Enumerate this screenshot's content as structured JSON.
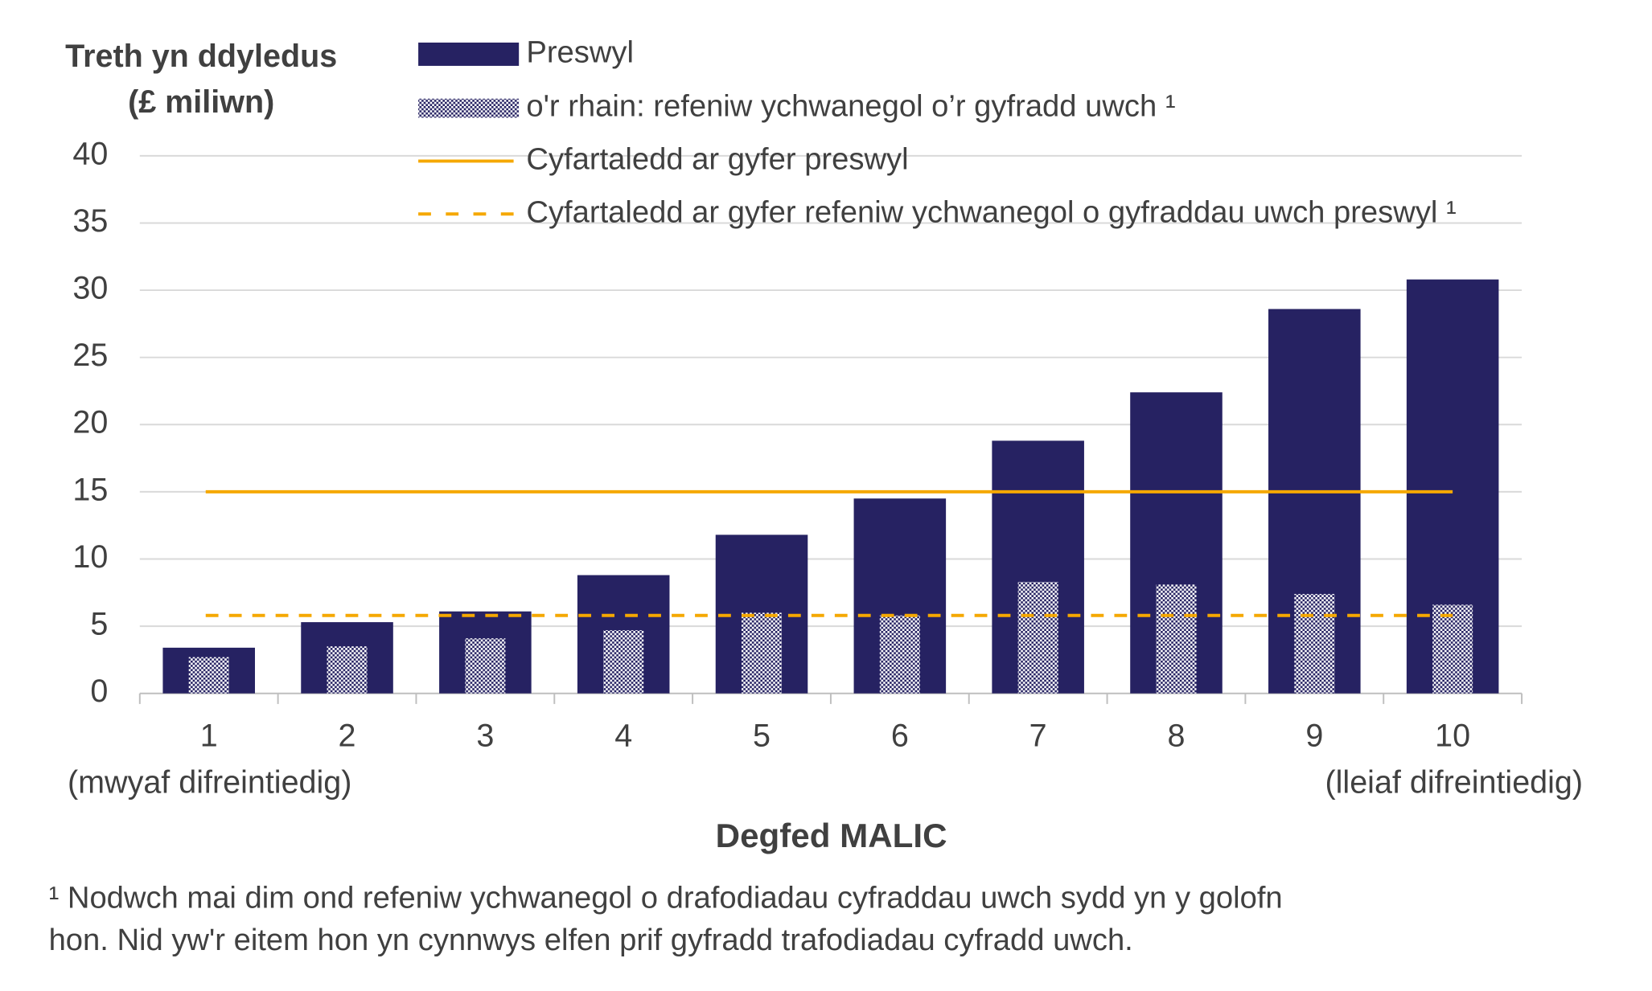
{
  "chart_data": {
    "type": "bar",
    "ylabel": [
      "Treth yn ddyledus",
      "(£ miliwn)"
    ],
    "xlabel": "Degfed MALIC",
    "categories": [
      "1",
      "2",
      "3",
      "4",
      "5",
      "6",
      "7",
      "8",
      "9",
      "10"
    ],
    "x_end_labels": [
      "(mwyaf difreintiedig)",
      "(lleiaf difreintiedig)"
    ],
    "series": [
      {
        "name": "Preswyl",
        "type": "bar",
        "color": "#262262",
        "values": [
          3.4,
          5.3,
          6.1,
          8.8,
          11.8,
          14.5,
          18.8,
          22.4,
          28.6,
          30.8
        ]
      },
      {
        "name": "o'r rhain: refeniw ychwanegol o’r gyfradd uwch ¹",
        "type": "bar",
        "pattern": "checker",
        "color": "#262262",
        "values": [
          2.7,
          3.5,
          4.1,
          4.7,
          6.0,
          5.8,
          8.3,
          8.1,
          7.4,
          6.6
        ]
      },
      {
        "name": "Cyfartaledd ar gyfer preswyl",
        "type": "line",
        "color": "#f5a800",
        "dash": false,
        "value": 15.0
      },
      {
        "name": "Cyfartaledd ar gyfer refeniw ychwanegol o gyfraddau uwch preswyl ¹",
        "type": "line",
        "color": "#f5a800",
        "dash": true,
        "value": 5.8
      }
    ],
    "ylim": [
      0,
      40
    ],
    "yticks": [
      0,
      5,
      10,
      15,
      20,
      25,
      30,
      35,
      40
    ],
    "grid": true,
    "footnote": [
      "¹ Nodwch mai dim ond refeniw ychwanegol o drafodiadau cyfraddau uwch sydd yn y golofn",
      "hon. Nid yw'r eitem hon yn cynnwys elfen prif gyfradd trafodiadau cyfradd uwch."
    ]
  }
}
